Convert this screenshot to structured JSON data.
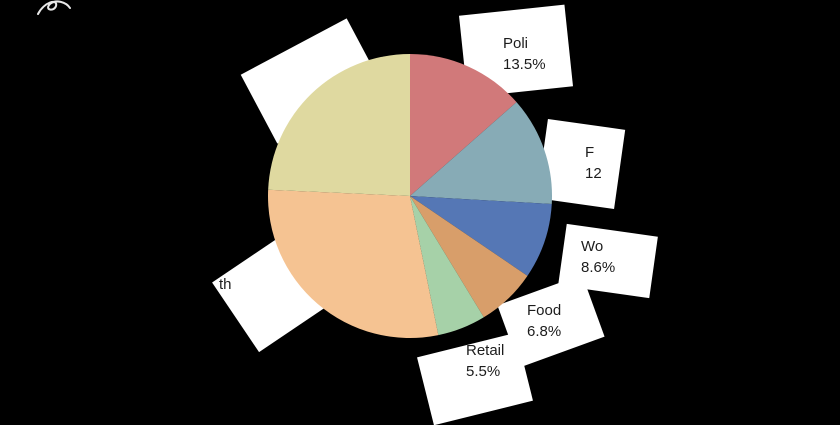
{
  "colors": {
    "background": "#000000",
    "label_box": "#ffffff",
    "label_text": "#1c1c1c"
  },
  "chart_data": {
    "type": "pie",
    "title": "",
    "legend_position": "none",
    "start_angle_deg": 90,
    "direction": "clockwise",
    "slices": [
      {
        "label_visible": "Poli",
        "percent_visible": "13.5%",
        "value": 13.5,
        "color": "#d1797a"
      },
      {
        "label_visible": "F",
        "percent_visible": "12",
        "value": 12.4,
        "color": "#87abb6"
      },
      {
        "label_visible": "Wo",
        "percent_visible": "8.6%",
        "value": 8.6,
        "color": "#5577b5"
      },
      {
        "label_visible": "Food",
        "percent_visible": "6.8%",
        "value": 6.8,
        "color": "#d89e6a"
      },
      {
        "label_visible": "Retail",
        "percent_visible": "5.5%",
        "value": 5.5,
        "color": "#a6d1a8"
      },
      {
        "label_visible": "th",
        "percent_visible": "",
        "value": 28.9,
        "color": "#f5c392"
      },
      {
        "label_visible": "",
        "percent_visible": "",
        "value": 24.3,
        "color": "#dfd9a0"
      }
    ]
  },
  "labels": {
    "politics": {
      "line1": "Poli",
      "line2": "13.5%"
    },
    "finance": {
      "line1": "F",
      "line2": "12"
    },
    "world": {
      "line1": "Wo",
      "line2": "8.6%"
    },
    "food": {
      "line1": "Food",
      "line2": "6.8%"
    },
    "retail": {
      "line1": "Retail",
      "line2": "5.5%"
    },
    "health": {
      "line1": "th",
      "line2": ""
    }
  }
}
